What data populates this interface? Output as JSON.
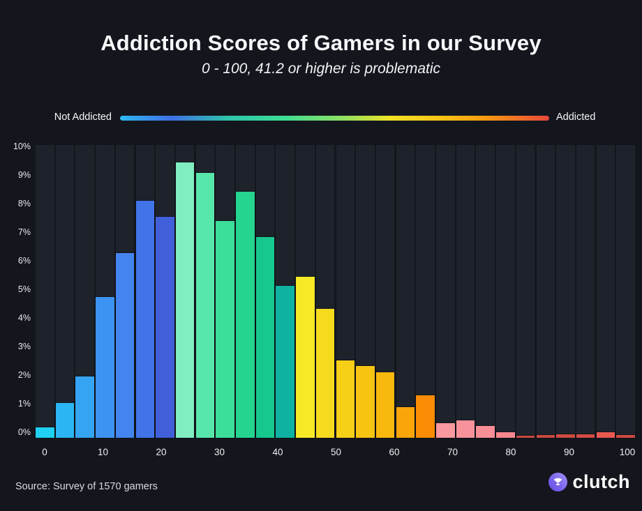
{
  "header": {
    "title": "Addiction Scores of Gamers in our Survey",
    "subtitle": "0 - 100, 41.2 or higher is problematic"
  },
  "legend": {
    "left_label": "Not Addicted",
    "right_label": "Addicted",
    "gradient_stops": [
      "#2db9f0",
      "#3f70e5",
      "#2fc3ab",
      "#3edd95",
      "#8fe062",
      "#f0e226",
      "#f6c315",
      "#f69b11",
      "#e8483a"
    ]
  },
  "chart_data": {
    "type": "bar",
    "title": "Addiction Scores of Gamers in our Survey",
    "subtitle": "0 - 100, 41.2 or higher is problematic",
    "xlabel": "",
    "ylabel": "",
    "ylim": [
      0,
      10
    ],
    "y_tick_labels": [
      "0%",
      "1%",
      "2%",
      "3%",
      "4%",
      "5%",
      "6%",
      "7%",
      "8%",
      "9%",
      "10%"
    ],
    "x_tick_values": [
      0,
      10,
      20,
      30,
      40,
      50,
      60,
      70,
      80,
      90,
      100
    ],
    "x_tick_labels": [
      "0",
      "10",
      "20",
      "30",
      "40",
      "50",
      "60",
      "70",
      "80",
      "90",
      "100"
    ],
    "grid": "vertical column stripes, no horizontal gridlines",
    "legend_position": "top gradient strip from Not Addicted to Addicted",
    "bin_centers": [
      0,
      3.4,
      6.9,
      10.3,
      13.8,
      17.2,
      20.7,
      24.1,
      27.6,
      31.0,
      34.5,
      37.9,
      41.4,
      44.8,
      48.3,
      51.7,
      55.2,
      58.6,
      62.1,
      65.5,
      69.0,
      72.4,
      75.9,
      79.3,
      82.8,
      86.2,
      89.7,
      93.1,
      96.6,
      100
    ],
    "values": [
      0.35,
      1.2,
      2.1,
      4.8,
      6.3,
      8.1,
      7.55,
      9.4,
      9.05,
      7.4,
      8.4,
      6.85,
      5.2,
      5.5,
      4.4,
      2.65,
      2.45,
      2.25,
      1.05,
      1.45,
      0.5,
      0.6,
      0.4,
      0.2,
      0.08,
      0.1,
      0.12,
      0.13,
      0.2,
      0.1
    ],
    "bar_colors": [
      "#1fd0f2",
      "#2bb5f2",
      "#35a4f2",
      "#3d93f1",
      "#4384ef",
      "#4274e9",
      "#415fd9",
      "#80eec0",
      "#58e7aa",
      "#3cde99",
      "#25d48f",
      "#16c88e",
      "#0fb2a1",
      "#f8e927",
      "#f6da1e",
      "#f7cf17",
      "#f8c412",
      "#f9b80e",
      "#faa50a",
      "#fb8c05",
      "#f9989f",
      "#f9939b",
      "#f88e96",
      "#f8878f",
      "#c94a41",
      "#cc4a41",
      "#d04b42",
      "#d34c43",
      "#ea5a50",
      "#cf4a41"
    ]
  },
  "footer": {
    "source": "Source: Survey of 1570 gamers",
    "brand": "clutch",
    "brand_icon": "trophy-icon"
  },
  "colors": {
    "page_background": "#14161d",
    "column_stripe": "#1e222b",
    "title_text": "#f7f8fa",
    "axis_text": "#e9ebf0",
    "brand_purple": "#7c64ee"
  }
}
